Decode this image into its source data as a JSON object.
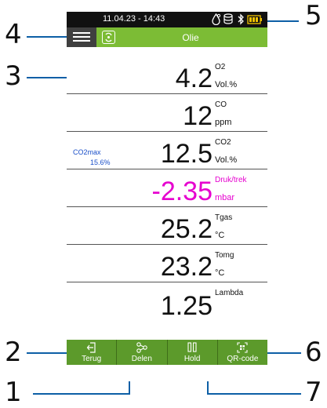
{
  "callouts": {
    "n1": "1",
    "n2": "2",
    "n3": "3",
    "n4": "4",
    "n5": "5",
    "n6": "6",
    "n7": "7"
  },
  "status": {
    "datetime": "11.04.23 - 14:43"
  },
  "header": {
    "title": "Olie"
  },
  "rows": [
    {
      "name": "O2",
      "value": "4.2",
      "unit": "Vol.%"
    },
    {
      "name": "CO",
      "value": "12",
      "unit": "ppm"
    },
    {
      "name": "CO2",
      "value": "12.5",
      "unit": "Vol.%",
      "side_label": "CO2max",
      "side_value": "15.6%"
    },
    {
      "name": "Druk/trek",
      "value": "-2.35",
      "unit": "mbar",
      "color": "#e600cf"
    },
    {
      "name": "Tgas",
      "value": "25.2",
      "unit": "°C"
    },
    {
      "name": "Tomg",
      "value": "23.2",
      "unit": "°C"
    },
    {
      "name": "Lambda",
      "value": "1.25",
      "unit": ""
    }
  ],
  "toolbar": {
    "back": "Terug",
    "share": "Delen",
    "hold": "Hold",
    "qr": "QR-code"
  },
  "colors": {
    "header": "#7cbc35",
    "toolbar": "#5c9a2b",
    "callout_line": "#0d5fa6",
    "accent_pink": "#e600cf"
  },
  "icons": [
    "menu-icon",
    "app-icon",
    "droplet-icon",
    "database-icon",
    "bluetooth-icon",
    "battery-icon",
    "back-icon",
    "share-icon",
    "pause-icon",
    "qr-icon"
  ]
}
